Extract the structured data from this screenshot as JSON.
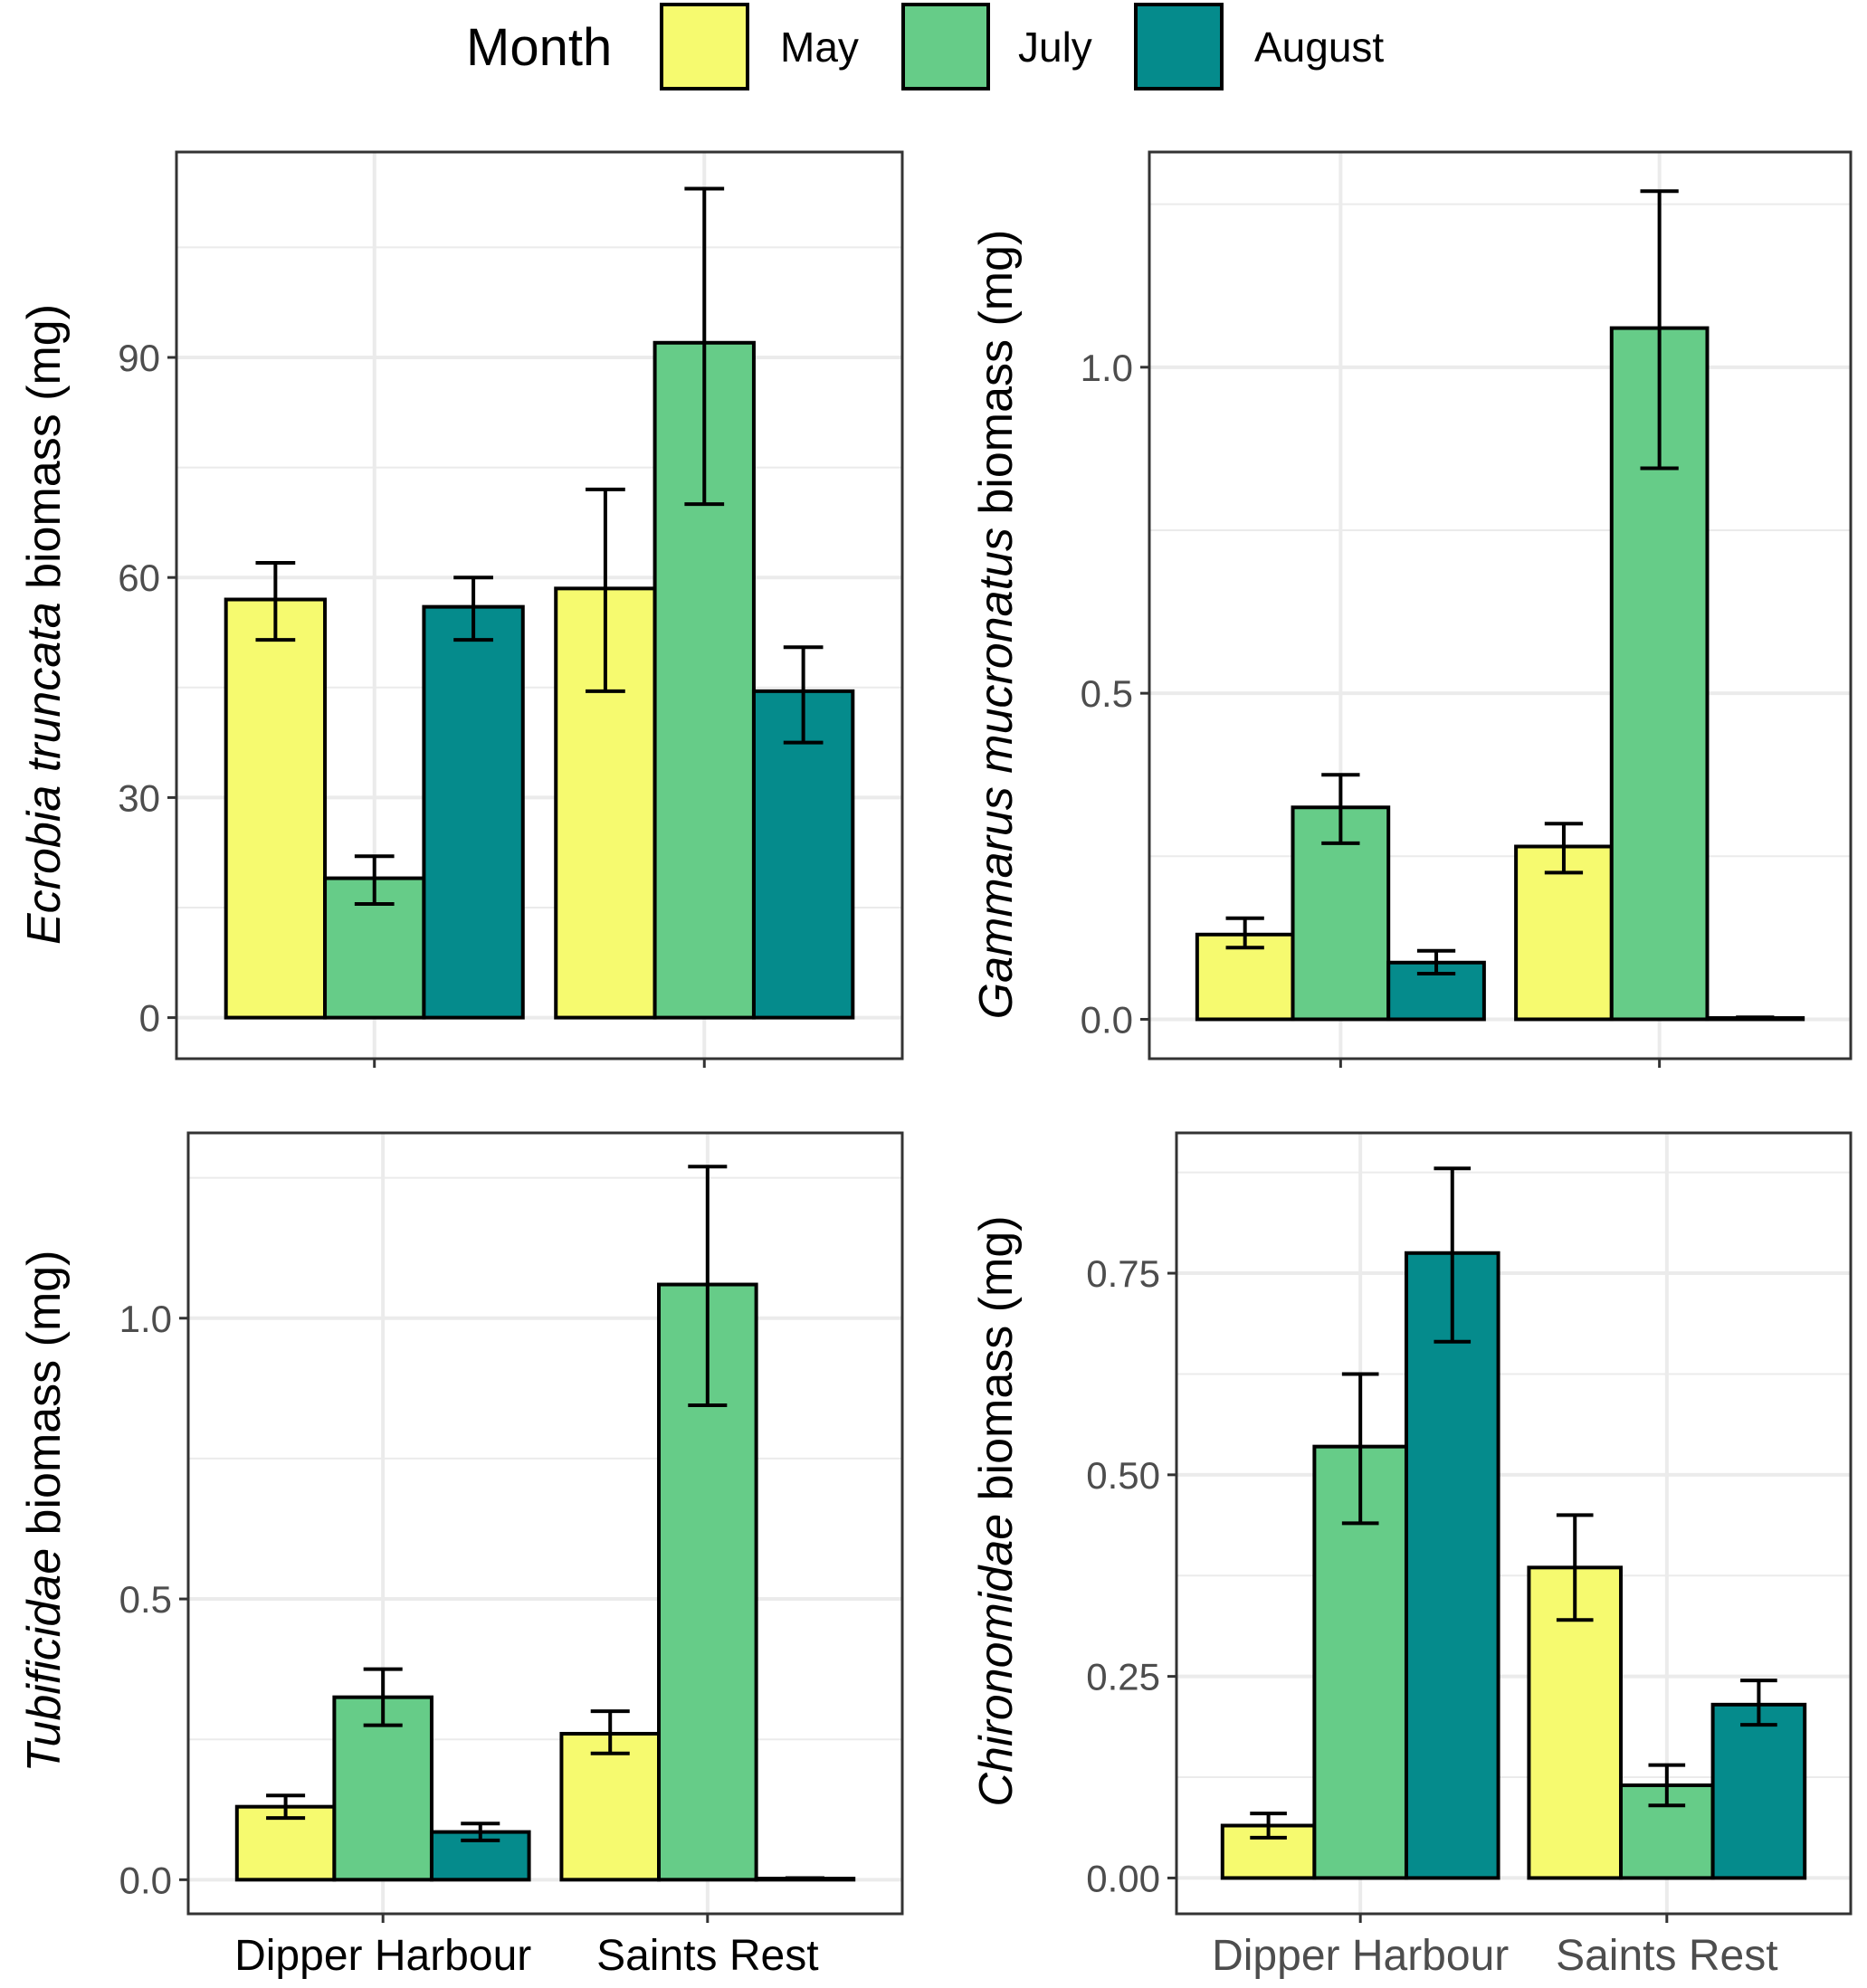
{
  "legend": {
    "title": "Month",
    "items": [
      {
        "label": "May",
        "color": "#F6FA6F"
      },
      {
        "label": "July",
        "color": "#66CC88"
      },
      {
        "label": "August",
        "color": "#058B8C"
      }
    ]
  },
  "chart_data": [
    {
      "type": "bar",
      "ylabel_italic": "Ecrobia truncata",
      "ylabel_rest": " biomass (mg)",
      "categories": [
        "Dipper Harbour",
        "Saints Rest"
      ],
      "show_xticklabels": false,
      "yticks": [
        0,
        30,
        60,
        90
      ],
      "ytick_labels": [
        "0",
        "30",
        "60",
        "90"
      ],
      "ylim": [
        -5.6,
        118
      ],
      "series": [
        {
          "name": "May",
          "values": [
            57,
            58.5
          ],
          "err_low": [
            51.5,
            44.5
          ],
          "err_high": [
            62,
            72
          ]
        },
        {
          "name": "July",
          "values": [
            19,
            92
          ],
          "err_low": [
            15.5,
            70
          ],
          "err_high": [
            22,
            113
          ]
        },
        {
          "name": "August",
          "values": [
            56,
            44.5
          ],
          "err_low": [
            51.5,
            37.5
          ],
          "err_high": [
            60,
            50.5
          ]
        }
      ]
    },
    {
      "type": "bar",
      "ylabel_italic": "Gammarus mucronatus",
      "ylabel_rest": " biomass (mg)",
      "categories": [
        "Dipper Harbour",
        "Saints Rest"
      ],
      "show_xticklabels": false,
      "yticks": [
        0,
        0.5,
        1.0
      ],
      "ytick_labels": [
        "0.0",
        "0.5",
        "1.0"
      ],
      "ylim": [
        -0.0604,
        1.33
      ],
      "series": [
        {
          "name": "May",
          "values": [
            0.13,
            0.265
          ],
          "err_low": [
            0.11,
            0.225
          ],
          "err_high": [
            0.155,
            0.3
          ]
        },
        {
          "name": "July",
          "values": [
            0.325,
            1.06
          ],
          "err_low": [
            0.27,
            0.845
          ],
          "err_high": [
            0.375,
            1.27
          ]
        },
        {
          "name": "August",
          "values": [
            0.087,
            0.002
          ],
          "err_low": [
            0.07,
            0.001
          ],
          "err_high": [
            0.105,
            0.003
          ]
        }
      ]
    },
    {
      "type": "bar",
      "ylabel_italic": "Tubificidae",
      "ylabel_rest": " biomass (mg)",
      "categories": [
        "Dipper Harbour",
        "Saints Rest"
      ],
      "show_xticklabels": true,
      "yticks": [
        0,
        0.5,
        1.0
      ],
      "ytick_labels": [
        "0.0",
        "0.5",
        "1.0"
      ],
      "ylim": [
        -0.0607,
        1.33
      ],
      "series": [
        {
          "name": "May",
          "values": [
            0.13,
            0.26
          ],
          "err_low": [
            0.11,
            0.225
          ],
          "err_high": [
            0.15,
            0.3
          ]
        },
        {
          "name": "July",
          "values": [
            0.325,
            1.06
          ],
          "err_low": [
            0.275,
            0.845
          ],
          "err_high": [
            0.375,
            1.27
          ]
        },
        {
          "name": "August",
          "values": [
            0.085,
            0.002
          ],
          "err_low": [
            0.07,
            0.001
          ],
          "err_high": [
            0.1,
            0.003
          ]
        }
      ]
    },
    {
      "type": "bar",
      "ylabel_italic": "Chironomidae",
      "ylabel_rest": " biomass (mg)",
      "categories": [
        "Dipper Harbour",
        "Saints Rest"
      ],
      "show_xticklabels": true,
      "yticks": [
        0,
        0.25,
        0.5,
        0.75
      ],
      "ytick_labels": [
        "0.00",
        "0.25",
        "0.50",
        "0.75"
      ],
      "ylim": [
        -0.0444,
        0.924
      ],
      "series": [
        {
          "name": "May",
          "values": [
            0.065,
            0.385
          ],
          "err_low": [
            0.05,
            0.32
          ],
          "err_high": [
            0.08,
            0.45
          ]
        },
        {
          "name": "July",
          "values": [
            0.535,
            0.115
          ],
          "err_low": [
            0.44,
            0.09
          ],
          "err_high": [
            0.625,
            0.14
          ]
        },
        {
          "name": "August",
          "values": [
            0.775,
            0.215
          ],
          "err_low": [
            0.665,
            0.19
          ],
          "err_high": [
            0.88,
            0.245
          ]
        }
      ]
    }
  ]
}
